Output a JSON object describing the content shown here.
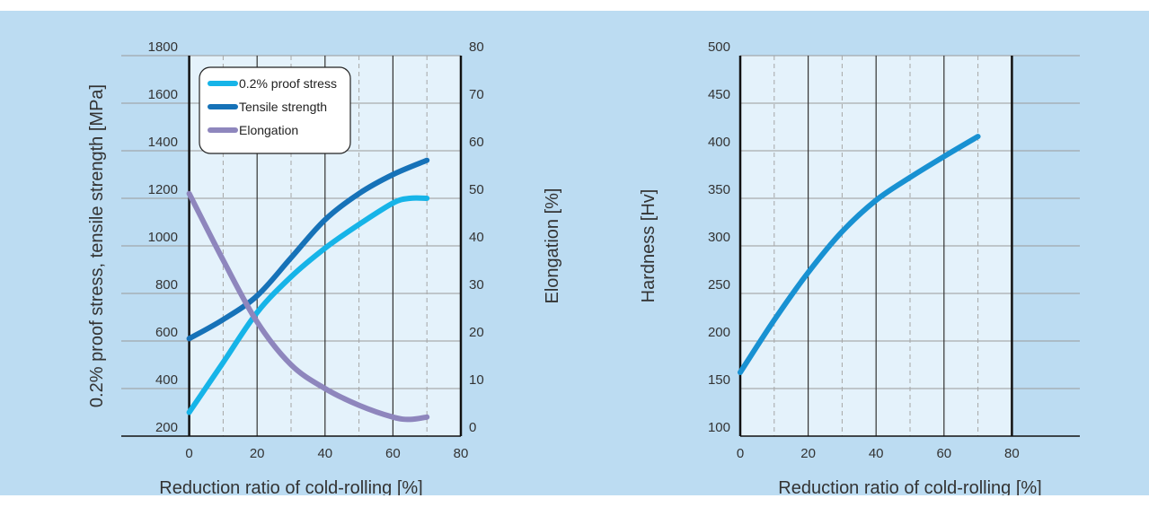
{
  "chart_data": [
    {
      "type": "line",
      "title": "",
      "xlabel": "Reduction ratio of cold-rolling [%]",
      "ylabel": "0.2% proof stress, tensile strength [MPa]",
      "ylabel_right": "Elongation [%]",
      "xlim": [
        -20,
        80
      ],
      "ylim": [
        200,
        1800
      ],
      "ylim_right": [
        0,
        80
      ],
      "x_ticks": [
        "0",
        "20",
        "40",
        "60",
        "80"
      ],
      "y_ticks": [
        "200",
        "400",
        "600",
        "800",
        "1000",
        "1200",
        "1400",
        "1600",
        "1800"
      ],
      "y_ticks_right": [
        "0",
        "10",
        "20",
        "30",
        "40",
        "50",
        "60",
        "70",
        "80"
      ],
      "grid": true,
      "legend_position": "top-left",
      "series": [
        {
          "name": "0.2% proof stress",
          "axis": "left",
          "color": "#16b4e8",
          "x": [
            0,
            10,
            20,
            30,
            40,
            50,
            60,
            65,
            70
          ],
          "y": [
            300,
            510,
            720,
            870,
            990,
            1090,
            1180,
            1200,
            1200
          ]
        },
        {
          "name": "Tensile strength",
          "axis": "left",
          "color": "#1672b8",
          "x": [
            0,
            10,
            20,
            30,
            40,
            50,
            60,
            70
          ],
          "y": [
            610,
            690,
            790,
            950,
            1110,
            1220,
            1300,
            1360
          ]
        },
        {
          "name": "Elongation",
          "axis": "right",
          "color": "#8e86bd",
          "x": [
            0,
            10,
            20,
            30,
            40,
            50,
            60,
            65,
            70
          ],
          "y": [
            51,
            37,
            24,
            15,
            10,
            6.5,
            4,
            3.5,
            4
          ]
        }
      ]
    },
    {
      "type": "line",
      "title": "",
      "xlabel": "Reduction ratio of cold-rolling [%]",
      "ylabel": "Hardness [Hv]",
      "xlim": [
        0,
        100
      ],
      "ylim": [
        100,
        500
      ],
      "x_ticks": [
        "0",
        "20",
        "40",
        "60",
        "80"
      ],
      "y_ticks": [
        "100",
        "150",
        "200",
        "250",
        "300",
        "350",
        "400",
        "450",
        "500"
      ],
      "grid": true,
      "series": [
        {
          "color": "#1891d2",
          "x": [
            0,
            10,
            20,
            30,
            40,
            50,
            60,
            70
          ],
          "y": [
            167,
            222,
            272,
            315,
            348,
            372,
            394,
            415
          ]
        }
      ]
    }
  ]
}
